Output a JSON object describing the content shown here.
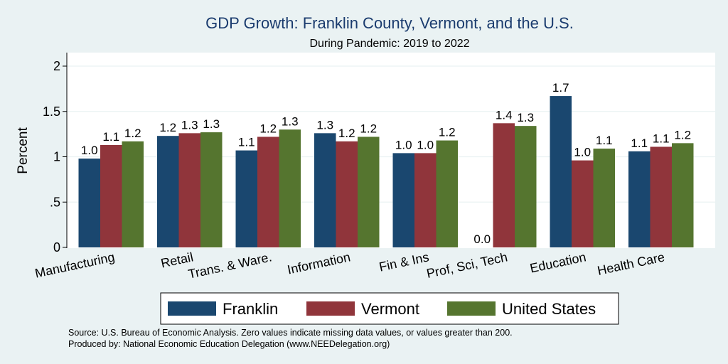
{
  "chart_data": {
    "type": "bar",
    "title": "GDP Growth: Franklin County, Vermont, and the U.S.",
    "subtitle": "During Pandemic: 2019 to 2022",
    "xlabel": "",
    "ylabel": "Percent",
    "ylim": [
      0,
      2.1
    ],
    "yticks": [
      {
        "value": 0,
        "label": "0"
      },
      {
        "value": 0.5,
        "label": ".5"
      },
      {
        "value": 1,
        "label": "1"
      },
      {
        "value": 1.5,
        "label": "1.5"
      },
      {
        "value": 2,
        "label": "2"
      }
    ],
    "grid": true,
    "legend_position": "bottom",
    "categories": [
      "Manufacturing",
      "Retail",
      "Trans. & Ware.",
      "Information",
      "Fin & Ins",
      "Prof, Sci, Tech",
      "Education",
      "Health Care"
    ],
    "series": [
      {
        "name": "Franklin",
        "color": "#1a476f",
        "values": [
          0.98,
          1.23,
          1.07,
          1.26,
          1.04,
          0.0,
          1.67,
          1.06
        ],
        "labels": [
          "1.0",
          "1.2",
          "1.1",
          "1.3",
          "1.0",
          "0.0",
          "1.7",
          "1.1"
        ]
      },
      {
        "name": "Vermont",
        "color": "#90353b",
        "values": [
          1.13,
          1.26,
          1.22,
          1.17,
          1.04,
          1.37,
          0.96,
          1.11
        ],
        "labels": [
          "1.1",
          "1.3",
          "1.2",
          "1.2",
          "1.0",
          "1.4",
          "1.0",
          "1.1"
        ]
      },
      {
        "name": "United States",
        "color": "#55752f",
        "values": [
          1.17,
          1.27,
          1.3,
          1.22,
          1.18,
          1.34,
          1.09,
          1.15
        ],
        "labels": [
          "1.2",
          "1.3",
          "1.3",
          "1.2",
          "1.2",
          "1.3",
          "1.1",
          "1.2"
        ]
      }
    ],
    "notes": [
      "Source: U.S. Bureau of Economic Analysis. Zero values indicate missing data values, or values greater than 200.",
      "Produced by: National Economic Education Delegation (www.NEEDelegation.org)"
    ]
  }
}
